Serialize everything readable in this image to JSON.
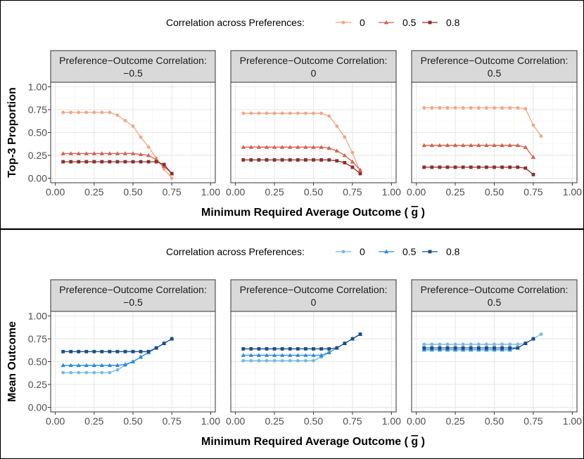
{
  "chart_data": [
    {
      "type": "line",
      "ylabel": "Top-3 Proportion",
      "xlabel": "Minimum Required Average Outcome (",
      "xlabel_symbol": "g",
      "xlabel_close": ")",
      "legend_title": "Correlation across Preferences:",
      "legend_labels": [
        "0",
        "0.5",
        "0.8"
      ],
      "colors": [
        "#f4a582",
        "#d6604d",
        "#8c2d2d"
      ],
      "markers": [
        "circle",
        "triangle",
        "square"
      ],
      "xlim": [
        -0.03,
        1.03
      ],
      "ylim": [
        -0.05,
        1.05
      ],
      "xticks": [
        "0.00",
        "0.25",
        "0.50",
        "0.75",
        "1.00"
      ],
      "yticks": [
        "0.00",
        "0.25",
        "0.50",
        "0.75",
        "1.00"
      ],
      "panels": [
        {
          "strip_line1": "Preference−Outcome Correlation:",
          "strip_line2": "−0.5",
          "series": [
            {
              "name": "0",
              "x": [
                0.05,
                0.1,
                0.15,
                0.2,
                0.25,
                0.3,
                0.35,
                0.4,
                0.45,
                0.5,
                0.55,
                0.6,
                0.65,
                0.7,
                0.75
              ],
              "y": [
                0.72,
                0.72,
                0.72,
                0.72,
                0.72,
                0.72,
                0.72,
                0.69,
                0.63,
                0.57,
                0.45,
                0.34,
                0.22,
                0.1,
                0.0
              ]
            },
            {
              "name": "0.5",
              "x": [
                0.05,
                0.1,
                0.15,
                0.2,
                0.25,
                0.3,
                0.35,
                0.4,
                0.45,
                0.5,
                0.55,
                0.6,
                0.65,
                0.7,
                0.75
              ],
              "y": [
                0.27,
                0.27,
                0.27,
                0.27,
                0.27,
                0.27,
                0.27,
                0.27,
                0.27,
                0.27,
                0.26,
                0.25,
                0.2,
                0.13,
                0.05
              ]
            },
            {
              "name": "0.8",
              "x": [
                0.05,
                0.1,
                0.15,
                0.2,
                0.25,
                0.3,
                0.35,
                0.4,
                0.45,
                0.5,
                0.55,
                0.6,
                0.65,
                0.7,
                0.75
              ],
              "y": [
                0.18,
                0.18,
                0.18,
                0.18,
                0.18,
                0.18,
                0.18,
                0.18,
                0.18,
                0.18,
                0.18,
                0.18,
                0.18,
                0.15,
                0.05
              ]
            }
          ]
        },
        {
          "strip_line1": "Preference−Outcome Correlation:",
          "strip_line2": "0",
          "series": [
            {
              "name": "0",
              "x": [
                0.05,
                0.1,
                0.15,
                0.2,
                0.25,
                0.3,
                0.35,
                0.4,
                0.45,
                0.5,
                0.55,
                0.6,
                0.65,
                0.7,
                0.75,
                0.8
              ],
              "y": [
                0.71,
                0.71,
                0.71,
                0.71,
                0.71,
                0.71,
                0.71,
                0.71,
                0.71,
                0.71,
                0.71,
                0.68,
                0.57,
                0.45,
                0.28,
                0.07
              ]
            },
            {
              "name": "0.5",
              "x": [
                0.05,
                0.1,
                0.15,
                0.2,
                0.25,
                0.3,
                0.35,
                0.4,
                0.45,
                0.5,
                0.55,
                0.6,
                0.65,
                0.7,
                0.75,
                0.8
              ],
              "y": [
                0.34,
                0.34,
                0.34,
                0.34,
                0.34,
                0.34,
                0.34,
                0.34,
                0.34,
                0.34,
                0.34,
                0.33,
                0.3,
                0.25,
                0.18,
                0.09
              ]
            },
            {
              "name": "0.8",
              "x": [
                0.05,
                0.1,
                0.15,
                0.2,
                0.25,
                0.3,
                0.35,
                0.4,
                0.45,
                0.5,
                0.55,
                0.6,
                0.65,
                0.7,
                0.75,
                0.8
              ],
              "y": [
                0.2,
                0.2,
                0.2,
                0.2,
                0.2,
                0.2,
                0.2,
                0.2,
                0.2,
                0.2,
                0.2,
                0.2,
                0.19,
                0.17,
                0.12,
                0.05
              ]
            }
          ]
        },
        {
          "strip_line1": "Preference−Outcome Correlation:",
          "strip_line2": "0.5",
          "series": [
            {
              "name": "0",
              "x": [
                0.05,
                0.1,
                0.15,
                0.2,
                0.25,
                0.3,
                0.35,
                0.4,
                0.45,
                0.5,
                0.55,
                0.6,
                0.65,
                0.7,
                0.75,
                0.8
              ],
              "y": [
                0.77,
                0.77,
                0.77,
                0.77,
                0.77,
                0.77,
                0.77,
                0.77,
                0.77,
                0.77,
                0.77,
                0.77,
                0.77,
                0.76,
                0.58,
                0.46
              ]
            },
            {
              "name": "0.5",
              "x": [
                0.05,
                0.1,
                0.15,
                0.2,
                0.25,
                0.3,
                0.35,
                0.4,
                0.45,
                0.5,
                0.55,
                0.6,
                0.65,
                0.7,
                0.75
              ],
              "y": [
                0.36,
                0.36,
                0.36,
                0.36,
                0.36,
                0.36,
                0.36,
                0.36,
                0.36,
                0.36,
                0.36,
                0.36,
                0.36,
                0.34,
                0.23
              ]
            },
            {
              "name": "0.8",
              "x": [
                0.05,
                0.1,
                0.15,
                0.2,
                0.25,
                0.3,
                0.35,
                0.4,
                0.45,
                0.5,
                0.55,
                0.6,
                0.65,
                0.7,
                0.75
              ],
              "y": [
                0.12,
                0.12,
                0.12,
                0.12,
                0.12,
                0.12,
                0.12,
                0.12,
                0.12,
                0.12,
                0.12,
                0.12,
                0.12,
                0.11,
                0.04
              ]
            }
          ]
        }
      ]
    },
    {
      "type": "line",
      "ylabel": "Mean Outcome",
      "xlabel": "Minimum Required Average Outcome (",
      "xlabel_symbol": "g",
      "xlabel_close": ")",
      "legend_title": "Correlation across Preferences:",
      "legend_labels": [
        "0",
        "0.5",
        "0.8"
      ],
      "colors": [
        "#74b9e7",
        "#2b8be0",
        "#1a4e85"
      ],
      "markers": [
        "circle",
        "triangle",
        "square"
      ],
      "xlim": [
        -0.03,
        1.03
      ],
      "ylim": [
        -0.05,
        1.05
      ],
      "xticks": [
        "0.00",
        "0.25",
        "0.50",
        "0.75",
        "1.00"
      ],
      "yticks": [
        "0.00",
        "0.25",
        "0.50",
        "0.75",
        "1.00"
      ],
      "panels": [
        {
          "strip_line1": "Preference−Outcome Correlation:",
          "strip_line2": "−0.5",
          "series": [
            {
              "name": "0",
              "x": [
                0.05,
                0.1,
                0.15,
                0.2,
                0.25,
                0.3,
                0.35,
                0.4,
                0.45,
                0.5,
                0.55,
                0.6,
                0.65,
                0.7,
                0.75
              ],
              "y": [
                0.38,
                0.38,
                0.38,
                0.38,
                0.38,
                0.38,
                0.38,
                0.41,
                0.46,
                0.5,
                0.55,
                0.6,
                0.65,
                0.7,
                0.75
              ]
            },
            {
              "name": "0.5",
              "x": [
                0.05,
                0.1,
                0.15,
                0.2,
                0.25,
                0.3,
                0.35,
                0.4,
                0.45,
                0.5,
                0.55,
                0.6,
                0.65,
                0.7,
                0.75
              ],
              "y": [
                0.46,
                0.46,
                0.46,
                0.46,
                0.46,
                0.46,
                0.46,
                0.46,
                0.47,
                0.5,
                0.55,
                0.6,
                0.65,
                0.7,
                0.75
              ]
            },
            {
              "name": "0.8",
              "x": [
                0.05,
                0.1,
                0.15,
                0.2,
                0.25,
                0.3,
                0.35,
                0.4,
                0.45,
                0.5,
                0.55,
                0.6,
                0.65,
                0.7,
                0.75
              ],
              "y": [
                0.61,
                0.61,
                0.61,
                0.61,
                0.61,
                0.61,
                0.61,
                0.61,
                0.61,
                0.61,
                0.61,
                0.61,
                0.65,
                0.7,
                0.75
              ]
            }
          ]
        },
        {
          "strip_line1": "Preference−Outcome Correlation:",
          "strip_line2": "0",
          "series": [
            {
              "name": "0",
              "x": [
                0.05,
                0.1,
                0.15,
                0.2,
                0.25,
                0.3,
                0.35,
                0.4,
                0.45,
                0.5,
                0.55,
                0.6,
                0.65,
                0.7,
                0.75,
                0.8
              ],
              "y": [
                0.51,
                0.51,
                0.51,
                0.51,
                0.51,
                0.51,
                0.51,
                0.51,
                0.51,
                0.51,
                0.55,
                0.6,
                0.65,
                0.7,
                0.75,
                0.8
              ]
            },
            {
              "name": "0.5",
              "x": [
                0.05,
                0.1,
                0.15,
                0.2,
                0.25,
                0.3,
                0.35,
                0.4,
                0.45,
                0.5,
                0.55,
                0.6,
                0.65,
                0.7,
                0.75,
                0.8
              ],
              "y": [
                0.57,
                0.57,
                0.57,
                0.57,
                0.57,
                0.57,
                0.57,
                0.57,
                0.57,
                0.57,
                0.57,
                0.6,
                0.65,
                0.7,
                0.75,
                0.8
              ]
            },
            {
              "name": "0.8",
              "x": [
                0.05,
                0.1,
                0.15,
                0.2,
                0.25,
                0.3,
                0.35,
                0.4,
                0.45,
                0.5,
                0.55,
                0.6,
                0.65,
                0.7,
                0.75,
                0.8
              ],
              "y": [
                0.64,
                0.64,
                0.64,
                0.64,
                0.64,
                0.64,
                0.64,
                0.64,
                0.64,
                0.64,
                0.64,
                0.64,
                0.65,
                0.7,
                0.75,
                0.8
              ]
            }
          ]
        },
        {
          "strip_line1": "Preference−Outcome Correlation:",
          "strip_line2": "0.5",
          "series": [
            {
              "name": "0",
              "x": [
                0.05,
                0.1,
                0.15,
                0.2,
                0.25,
                0.3,
                0.35,
                0.4,
                0.45,
                0.5,
                0.55,
                0.6,
                0.65,
                0.7,
                0.75,
                0.8
              ],
              "y": [
                0.69,
                0.69,
                0.69,
                0.69,
                0.69,
                0.69,
                0.69,
                0.69,
                0.69,
                0.69,
                0.69,
                0.69,
                0.69,
                0.7,
                0.75,
                0.8
              ]
            },
            {
              "name": "0.5",
              "x": [
                0.05,
                0.1,
                0.15,
                0.2,
                0.25,
                0.3,
                0.35,
                0.4,
                0.45,
                0.5,
                0.55,
                0.6,
                0.65,
                0.7,
                0.75
              ],
              "y": [
                0.63,
                0.63,
                0.63,
                0.63,
                0.63,
                0.63,
                0.63,
                0.63,
                0.63,
                0.63,
                0.63,
                0.63,
                0.65,
                0.7,
                0.75
              ]
            },
            {
              "name": "0.8",
              "x": [
                0.05,
                0.1,
                0.15,
                0.2,
                0.25,
                0.3,
                0.35,
                0.4,
                0.45,
                0.5,
                0.55,
                0.6,
                0.65,
                0.7,
                0.75
              ],
              "y": [
                0.65,
                0.65,
                0.65,
                0.65,
                0.65,
                0.65,
                0.65,
                0.65,
                0.65,
                0.65,
                0.65,
                0.65,
                0.65,
                0.7,
                0.75
              ]
            }
          ]
        }
      ]
    }
  ]
}
